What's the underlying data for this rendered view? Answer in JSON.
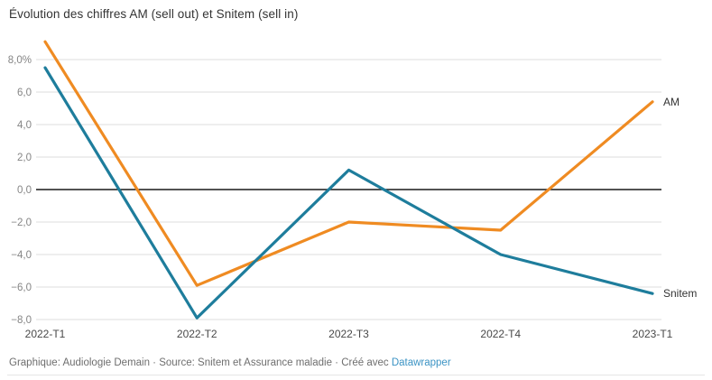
{
  "title": "Évolution des chiffres AM (sell out) et Snitem (sell in)",
  "footer": {
    "text": "Graphique: Audiologie Demain · Source: Snitem et Assurance maladie · Créé avec ",
    "link_text": "Datawrapper"
  },
  "chart_data": {
    "type": "line",
    "title": "Évolution des chiffres AM (sell out) et Snitem (sell in)",
    "categories": [
      "2022-T1",
      "2022-T2",
      "2022-T3",
      "2022-T4",
      "2023-T1"
    ],
    "series": [
      {
        "name": "AM",
        "color": "#EF8B22",
        "values": [
          9.1,
          -5.9,
          -2.0,
          -2.5,
          5.4
        ]
      },
      {
        "name": "Snitem",
        "color": "#1E7D9C",
        "values": [
          7.5,
          -7.9,
          1.2,
          -4.0,
          -6.4
        ]
      }
    ],
    "xlabel": "",
    "ylabel": "",
    "ylim": [
      -8,
      9.5
    ],
    "yticks": [
      {
        "value": 8,
        "label": "8,0%"
      },
      {
        "value": 6,
        "label": "6,0"
      },
      {
        "value": 4,
        "label": "4,0"
      },
      {
        "value": 2,
        "label": "2,0"
      },
      {
        "value": 0,
        "label": "0,0"
      },
      {
        "value": -2,
        "label": "−2,0"
      },
      {
        "value": -4,
        "label": "−4,0"
      },
      {
        "value": -6,
        "label": "−6,0"
      },
      {
        "value": -8,
        "label": "−8,0"
      }
    ],
    "grid": true,
    "zero_line": true,
    "legend_position": "line-end-labels",
    "accent_colors": {
      "am": "#EF8B22",
      "snitem": "#1E7D9C",
      "link": "#3b93c4"
    }
  }
}
